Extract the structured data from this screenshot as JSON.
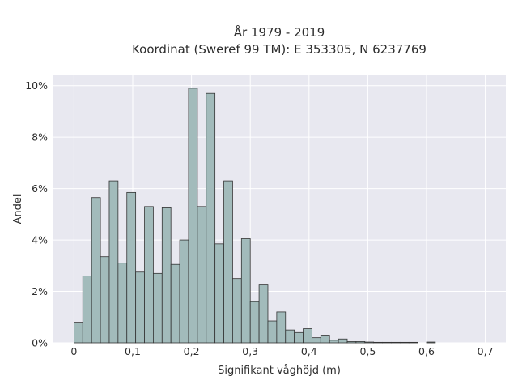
{
  "chart_data": {
    "type": "bar",
    "title_line1": "År 1979 - 2019",
    "title_line2": "Koordinat (Sweref 99 TM): E 353305, N 6237769",
    "xlabel": "Signifikant våghöjd (m)",
    "ylabel": "Andel",
    "xlim": [
      -0.035,
      0.735
    ],
    "ylim": [
      0,
      10.4
    ],
    "x_ticks": [
      0,
      0.1,
      0.2,
      0.3,
      0.4,
      0.5,
      0.6,
      0.7
    ],
    "x_tick_labels": [
      "0",
      "0,1",
      "0,2",
      "0,3",
      "0,4",
      "0,5",
      "0,6",
      "0,7"
    ],
    "y_ticks": [
      0,
      2,
      4,
      6,
      8,
      10
    ],
    "y_tick_labels": [
      "0%",
      "2%",
      "4%",
      "6%",
      "8%",
      "10%"
    ],
    "grid": true,
    "background": "#e8e8f0",
    "bar_color": "#a2bbbb",
    "bar_edge_color": "#333333",
    "bin_width": 0.015,
    "bins": [
      {
        "x": 0.0,
        "value": 0.8
      },
      {
        "x": 0.015,
        "value": 2.6
      },
      {
        "x": 0.03,
        "value": 5.65
      },
      {
        "x": 0.045,
        "value": 3.35
      },
      {
        "x": 0.06,
        "value": 6.3
      },
      {
        "x": 0.075,
        "value": 3.1
      },
      {
        "x": 0.09,
        "value": 5.85
      },
      {
        "x": 0.105,
        "value": 2.75
      },
      {
        "x": 0.12,
        "value": 5.3
      },
      {
        "x": 0.135,
        "value": 2.7
      },
      {
        "x": 0.15,
        "value": 5.25
      },
      {
        "x": 0.165,
        "value": 3.05
      },
      {
        "x": 0.18,
        "value": 4.0
      },
      {
        "x": 0.195,
        "value": 9.9
      },
      {
        "x": 0.21,
        "value": 5.3
      },
      {
        "x": 0.225,
        "value": 9.7
      },
      {
        "x": 0.24,
        "value": 3.85
      },
      {
        "x": 0.255,
        "value": 6.3
      },
      {
        "x": 0.27,
        "value": 2.5
      },
      {
        "x": 0.285,
        "value": 4.05
      },
      {
        "x": 0.3,
        "value": 1.6
      },
      {
        "x": 0.315,
        "value": 2.25
      },
      {
        "x": 0.33,
        "value": 0.85
      },
      {
        "x": 0.345,
        "value": 1.2
      },
      {
        "x": 0.36,
        "value": 0.5
      },
      {
        "x": 0.375,
        "value": 0.4
      },
      {
        "x": 0.39,
        "value": 0.55
      },
      {
        "x": 0.405,
        "value": 0.2
      },
      {
        "x": 0.42,
        "value": 0.3
      },
      {
        "x": 0.435,
        "value": 0.1
      },
      {
        "x": 0.45,
        "value": 0.15
      },
      {
        "x": 0.465,
        "value": 0.05
      },
      {
        "x": 0.48,
        "value": 0.05
      },
      {
        "x": 0.495,
        "value": 0.03
      },
      {
        "x": 0.51,
        "value": 0.02
      },
      {
        "x": 0.525,
        "value": 0.02
      },
      {
        "x": 0.54,
        "value": 0.02
      },
      {
        "x": 0.555,
        "value": 0.02
      },
      {
        "x": 0.57,
        "value": 0.02
      },
      {
        "x": 0.6,
        "value": 0.03
      }
    ]
  }
}
